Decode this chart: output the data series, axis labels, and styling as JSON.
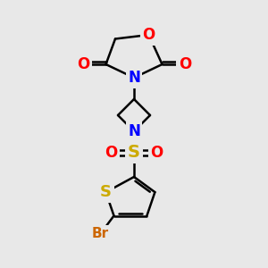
{
  "background_color": "#e8e8e8",
  "atom_colors": {
    "C": "#000000",
    "N": "#0000ff",
    "O": "#ff0000",
    "S": "#ccaa00",
    "Br": "#cc6600"
  },
  "bond_color": "#000000",
  "bond_width": 1.8,
  "font_size_atom": 12,
  "font_size_br": 11
}
